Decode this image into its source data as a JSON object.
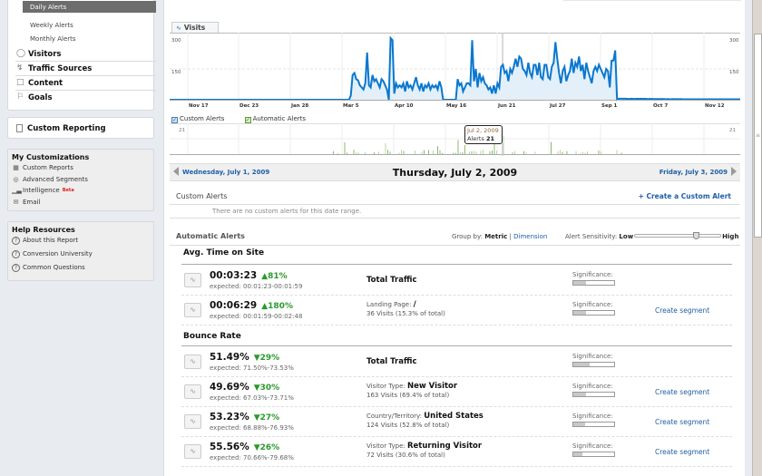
{
  "sidebar": {
    "intelligence_sub": [
      {
        "label": "Daily Alerts",
        "selected": true
      },
      {
        "label": "Weekly Alerts"
      },
      {
        "label": "Monthly Alerts"
      }
    ],
    "nav_items": [
      {
        "label": "Visitors",
        "icon": "person-icon"
      },
      {
        "label": "Traffic Sources",
        "icon": "traffic-icon"
      },
      {
        "label": "Content",
        "icon": "page-icon"
      },
      {
        "label": "Goals",
        "icon": "flag-icon"
      }
    ],
    "custom_reporting": "Custom Reporting",
    "my_customizations": {
      "title": "My Customizations",
      "items": [
        {
          "label": "Custom Reports",
          "icon": "report-icon"
        },
        {
          "label": "Advanced Segments",
          "icon": "segments-icon"
        },
        {
          "label": "Intelligence",
          "icon": "intelligence-icon",
          "badge": "Beta"
        },
        {
          "label": "Email",
          "icon": "email-icon"
        }
      ]
    },
    "help": {
      "title": "Help Resources",
      "items": [
        {
          "label": "About this Report"
        },
        {
          "label": "Conversion University"
        },
        {
          "label": "Common Questions"
        }
      ]
    }
  },
  "chart_tab": {
    "label": "Visits",
    "icon": "line-chart-icon"
  },
  "chart_data": [
    {
      "type": "area",
      "title": "Visits",
      "ylim": [
        0,
        300
      ],
      "yticks": [
        150,
        300
      ],
      "x_ticks": [
        "Nov 17",
        "Dec 23",
        "Jan 28",
        "Mar 5",
        "Apr 10",
        "May 16",
        "Jun 21",
        "Jul 27",
        "Sep 1",
        "Oct 7",
        "Nov 12"
      ],
      "series": [
        {
          "name": "Visits",
          "color": "#0077cc",
          "values": [
            0,
            0,
            0,
            0,
            0,
            0,
            0,
            0,
            0,
            0,
            0,
            0,
            0,
            0,
            0,
            0,
            0,
            0,
            0,
            0,
            0,
            0,
            0,
            0,
            0,
            0,
            0,
            0,
            0,
            0,
            0,
            0,
            0,
            0,
            0,
            0,
            0,
            0,
            0,
            0,
            0,
            0,
            0,
            0,
            0,
            0,
            0,
            0,
            0,
            0,
            0,
            0,
            0,
            0,
            0,
            0,
            0,
            0,
            0,
            0,
            0,
            0,
            0,
            0,
            0,
            0,
            0,
            0,
            0,
            0,
            0,
            0,
            0,
            0,
            0,
            0,
            0,
            0,
            0,
            0,
            0,
            0,
            0,
            0,
            0,
            0,
            0,
            0,
            0,
            0,
            0,
            0,
            0,
            0,
            0,
            0,
            0,
            0,
            0,
            0,
            20,
            120,
            130,
            100,
            95,
            70,
            60,
            50,
            80,
            230,
            70,
            60,
            120,
            90,
            100,
            80,
            60,
            100,
            90,
            70,
            50,
            0,
            300,
            290,
            30,
            80,
            60,
            70,
            60,
            80,
            40,
            90,
            60,
            70,
            50,
            80,
            110,
            70,
            50,
            80,
            40,
            70,
            60,
            80,
            50,
            70,
            60,
            70,
            50,
            90,
            60,
            0,
            0,
            0,
            0,
            0,
            0,
            0,
            0,
            100,
            70,
            80,
            40,
            60,
            80,
            80,
            70,
            290,
            90,
            150,
            60,
            130,
            90,
            110,
            80,
            70,
            50,
            60,
            30,
            70,
            30,
            80,
            60,
            160,
            170,
            130,
            140,
            90,
            150,
            130,
            160,
            200,
            160,
            210,
            200,
            150,
            140,
            120,
            180,
            130,
            110,
            170,
            170,
            120,
            180,
            110,
            100,
            170,
            170,
            110,
            100,
            160,
            180,
            280,
            200,
            130,
            80,
            140,
            160,
            90,
            120,
            140,
            200,
            130,
            180,
            160,
            210,
            140,
            170,
            100,
            180,
            140,
            110,
            80,
            140,
            160,
            140,
            170,
            150,
            130,
            110,
            150,
            140,
            60,
            190,
            190,
            240,
            0,
            5,
            5,
            5,
            5,
            5,
            4,
            4,
            5,
            4,
            4,
            5,
            4,
            5,
            4,
            5,
            4,
            3,
            4,
            4,
            3,
            3,
            3,
            3,
            3,
            3,
            3,
            2,
            3,
            2,
            2,
            3,
            2,
            3,
            2,
            3,
            2,
            2,
            2,
            2,
            2,
            2,
            2,
            2,
            2,
            2,
            2,
            2,
            2,
            2,
            2,
            2,
            2,
            2,
            2,
            2,
            2,
            2,
            2,
            2,
            2,
            2,
            2,
            2,
            2,
            2,
            2,
            2,
            2
          ]
        }
      ]
    },
    {
      "type": "bar",
      "title": "Alerts",
      "ylim": [
        0,
        21
      ],
      "yticks": [
        21
      ],
      "legend": [
        "Custom Alerts",
        "Automatic Alerts"
      ],
      "tooltip": {
        "date": "Jul 2, 2009",
        "label": "Alerts",
        "value": 21
      }
    }
  ],
  "legend": {
    "custom": "Custom Alerts",
    "automatic": "Automatic Alerts"
  },
  "y_labels": {
    "left_top": "300",
    "left_mid": "150",
    "right_top": "300",
    "right_mid": "150",
    "alerts_left": "21",
    "alerts_right": "21"
  },
  "tooltip": {
    "date": "Jul 2, 2009",
    "label": "Alerts",
    "value": "21"
  },
  "datebar": {
    "prev": "Wednesday, July 1, 2009",
    "current": "Thursday, July 2, 2009",
    "next": "Friday, July 3, 2009"
  },
  "custom_alerts": {
    "title": "Custom Alerts",
    "create": "+ Create a Custom Alert",
    "empty": "There are no custom alerts for this date range."
  },
  "automatic_alerts": {
    "title": "Automatic Alerts",
    "group_by_label": "Group by:",
    "group_metric": "Metric",
    "group_sep": "|",
    "group_dimension": "Dimension",
    "sensitivity_label": "Alert Sensitivity:",
    "low": "Low",
    "high": "High"
  },
  "metrics": [
    {
      "title": "Avg. Time on Site",
      "rows": [
        {
          "value": "00:03:23",
          "change": "▲81%",
          "expected": "expected: 00:01:23-00:01:59",
          "dimension": "Total Traffic",
          "significance_pct": 30
        },
        {
          "value": "00:06:29",
          "change": "▲180%",
          "expected": "expected: 00:01:59-00:02:48",
          "dim_label": "Landing Page:",
          "dim_value": "/",
          "visits": "36 Visits (15.3% of total)",
          "significance_pct": 30,
          "segment": "Create segment"
        }
      ]
    },
    {
      "title": "Bounce Rate",
      "rows": [
        {
          "value": "51.49%",
          "change": "▼29%",
          "expected": "expected: 71.50%-73.53%",
          "dimension": "Total Traffic",
          "significance_pct": 40
        },
        {
          "value": "49.69%",
          "change": "▼30%",
          "expected": "expected: 67.03%-73.71%",
          "dim_label": "Visitor Type:",
          "dim_value": "New Visitor",
          "visits": "163 Visits (69.4% of total)",
          "significance_pct": 30,
          "segment": "Create segment"
        },
        {
          "value": "53.23%",
          "change": "▼27%",
          "expected": "expected: 68.88%-76.93%",
          "dim_label": "Country/Territory:",
          "dim_value": "United States",
          "visits": "124 Visits (52.8% of total)",
          "significance_pct": 28,
          "segment": "Create segment"
        },
        {
          "value": "55.56%",
          "change": "▼26%",
          "expected": "expected: 70.66%-79.68%",
          "dim_label": "Visitor Type:",
          "dim_value": "Returning Visitor",
          "visits": "72 Visits (30.6% of total)",
          "significance_pct": 22,
          "segment": "Create segment"
        }
      ]
    }
  ],
  "labels": {
    "significance": "Significance:"
  }
}
